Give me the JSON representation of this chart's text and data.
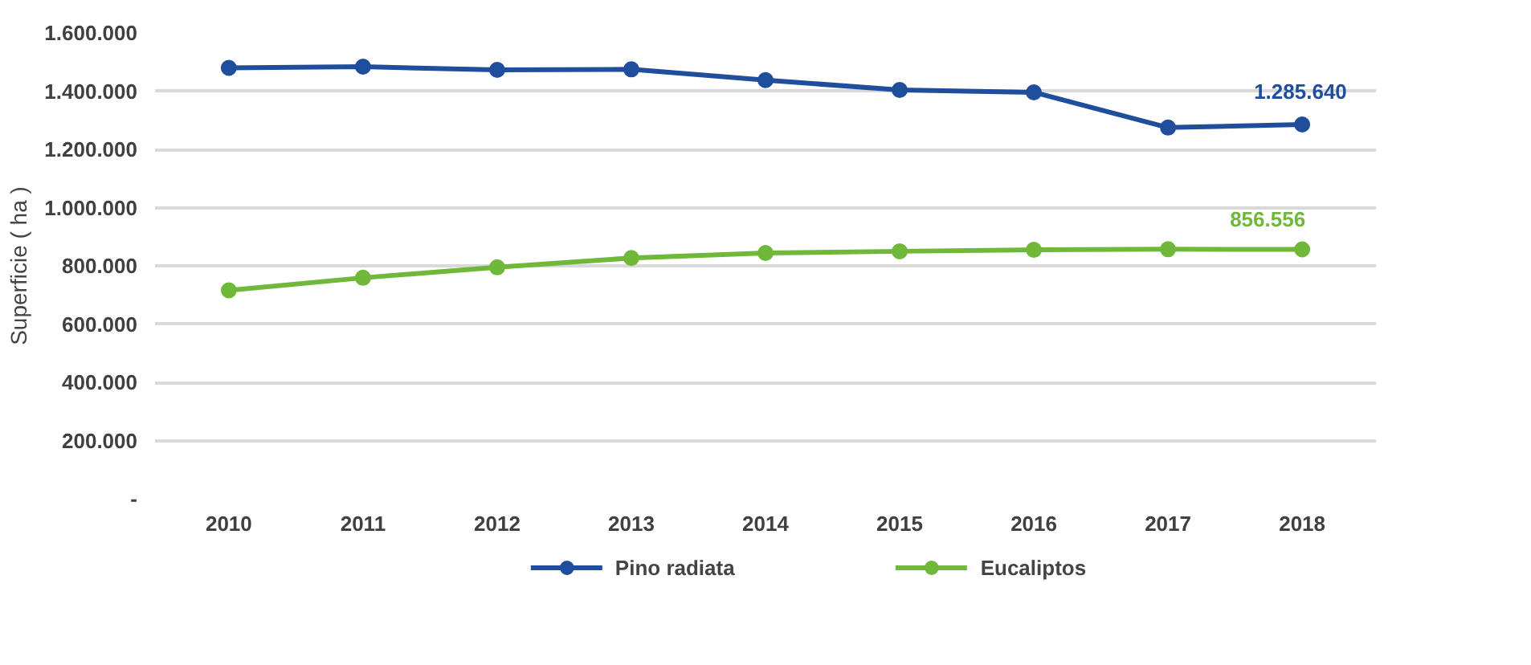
{
  "chart_data": {
    "type": "line",
    "ylabel": "Superficie ( ha )",
    "categories": [
      "2010",
      "2011",
      "2012",
      "2013",
      "2014",
      "2015",
      "2016",
      "2017",
      "2018"
    ],
    "series": [
      {
        "name": "Pino radiata",
        "color": "#1f4e9c",
        "values": [
          1480000,
          1484000,
          1473000,
          1475000,
          1438000,
          1404000,
          1396000,
          1275000,
          1285640
        ]
      },
      {
        "name": "Eucaliptos",
        "color": "#70b83a",
        "values": [
          716000,
          759000,
          795000,
          827000,
          844000,
          850000,
          855000,
          857000,
          856556
        ]
      }
    ],
    "annotations": [
      {
        "text": "1.285.640",
        "x": "2018",
        "y": 1285640
      },
      {
        "text": "856.556",
        "x": "2018",
        "y": 856556
      }
    ],
    "ylim": [
      0,
      1600000
    ],
    "yticks": [
      {
        "value": 0,
        "label": "-"
      },
      {
        "value": 200000,
        "label": "200.000"
      },
      {
        "value": 400000,
        "label": "400.000"
      },
      {
        "value": 600000,
        "label": "600.000"
      },
      {
        "value": 800000,
        "label": "800.000"
      },
      {
        "value": 1000000,
        "label": "1.000.000"
      },
      {
        "value": 1200000,
        "label": "1.200.000"
      },
      {
        "value": 1400000,
        "label": "1.400.000"
      },
      {
        "value": 1600000,
        "label": "1.600.000"
      }
    ],
    "grid": "y",
    "legend": "bottom",
    "marker": "circle",
    "line_style": "solid"
  }
}
